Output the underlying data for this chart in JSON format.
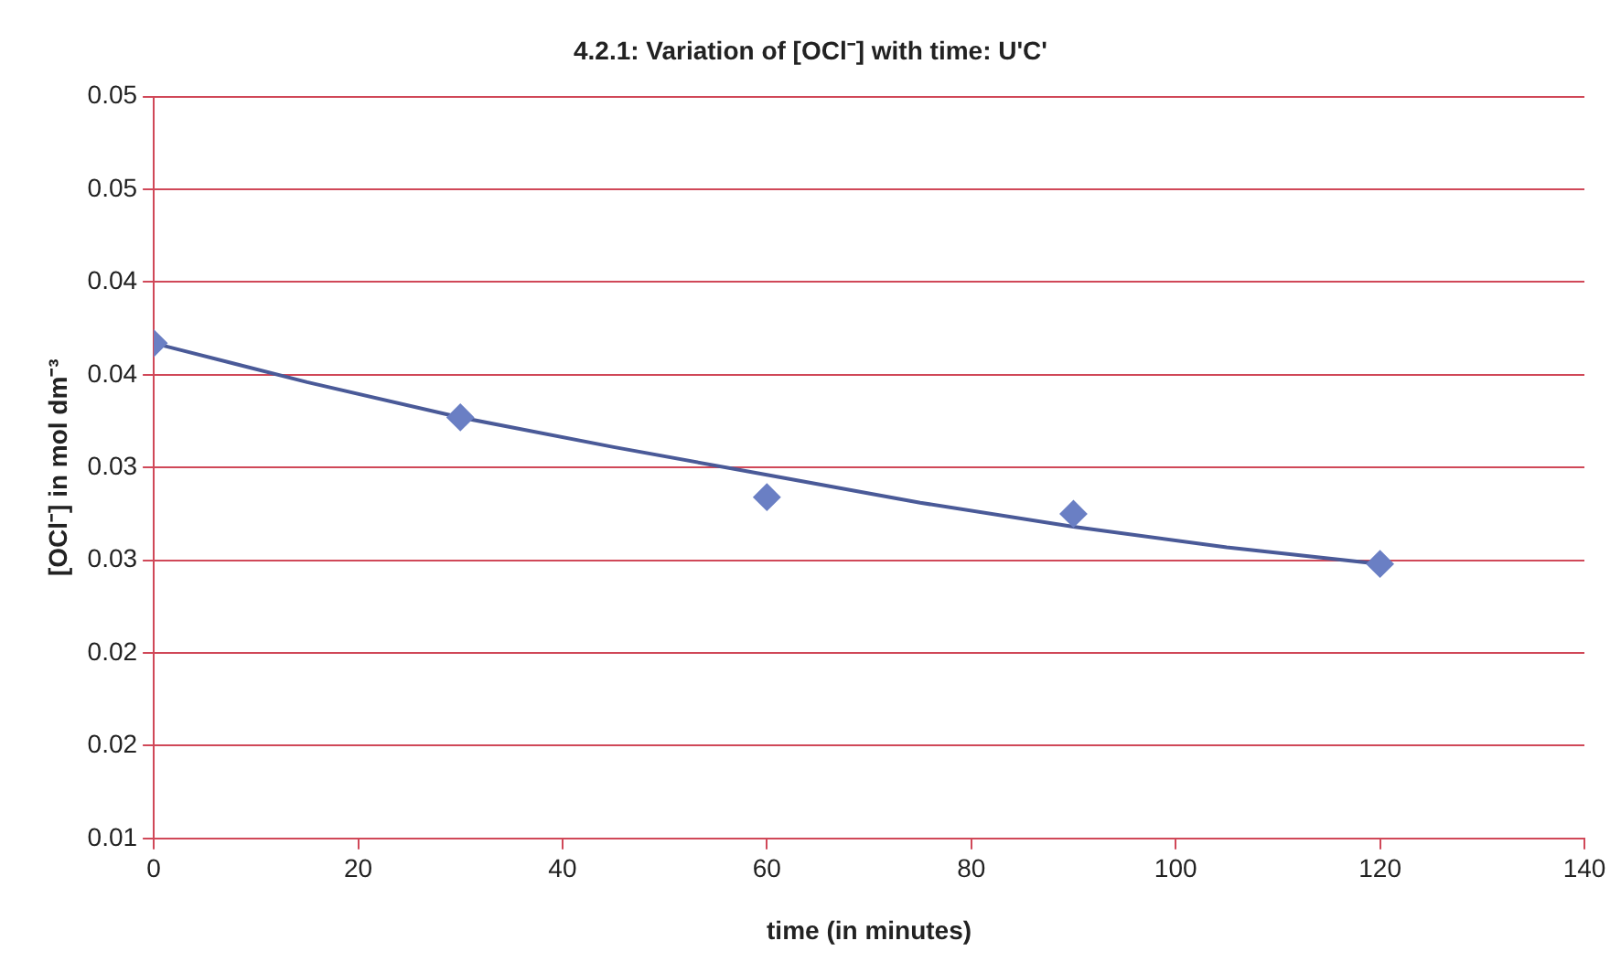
{
  "chart_data": {
    "type": "scatter",
    "title": "4.2.1: Variation of [OCl⁻] with time: U'C'",
    "xlabel": "time (in minutes)",
    "ylabel": "[OCl⁻] in mol dm⁻³",
    "series": [
      {
        "color": "#6a7fc4",
        "marker": "diamond",
        "x": [
          0,
          30,
          60,
          90,
          120
        ],
        "values": [
          0.0367,
          0.0327,
          0.0284,
          0.0275,
          0.0248
        ]
      },
      {
        "type": "line",
        "color": "#4a5a98",
        "marker": "none",
        "x": [
          0,
          15,
          30,
          45,
          60,
          75,
          90,
          105,
          120
        ],
        "values": [
          0.0367,
          0.0346,
          0.0327,
          0.0311,
          0.0296,
          0.0281,
          0.0268,
          0.0257,
          0.0248
        ]
      }
    ],
    "xlim": [
      0,
      140
    ],
    "xticks": [
      0,
      20,
      40,
      60,
      80,
      100,
      120,
      140
    ],
    "ylim": [
      0.01,
      0.05
    ],
    "yticks": [
      0.01,
      {
        "value": 0.015,
        "label": "0.02"
      },
      0.02,
      {
        "value": 0.025,
        "label": "0.03"
      },
      0.03,
      {
        "value": 0.035,
        "label": "0.04"
      },
      0.04,
      {
        "value": 0.045,
        "label": "0.05"
      },
      0.05
    ],
    "grid": "y",
    "legend": false
  }
}
